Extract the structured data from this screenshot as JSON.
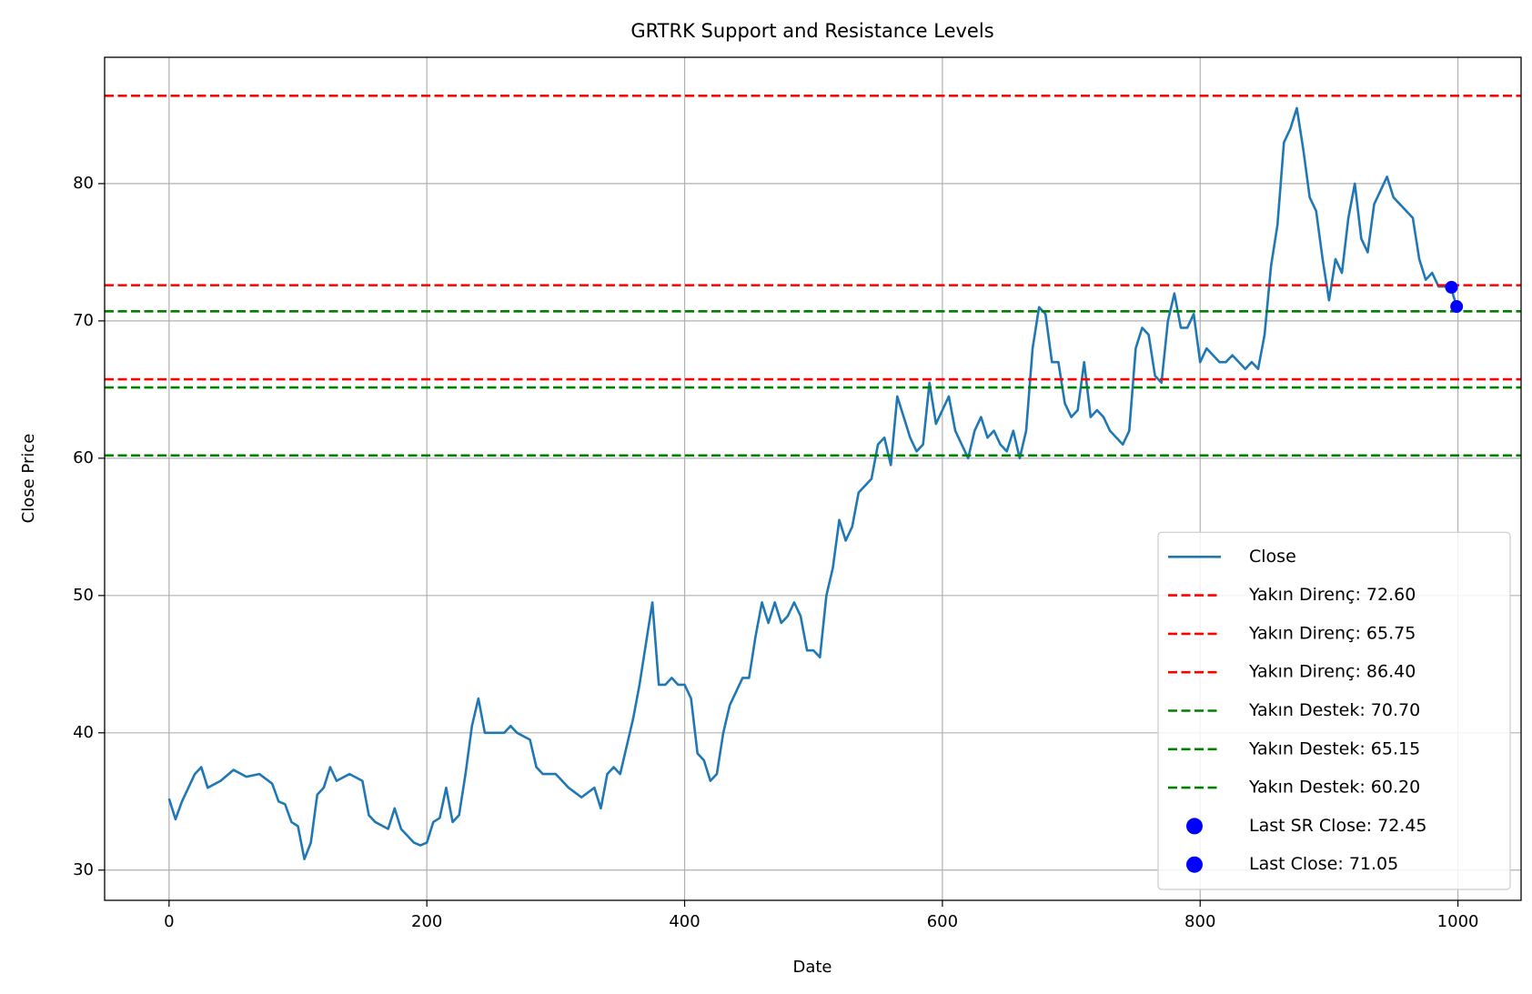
{
  "chart_data": {
    "type": "line",
    "title": "GRTRK Support and Resistance Levels",
    "x_label": "Date",
    "y_label": "Close Price",
    "xlim": [
      -50,
      1049
    ],
    "ylim": [
      27.8,
      89.2
    ],
    "xticks": [
      0,
      200,
      400,
      600,
      800,
      1000
    ],
    "yticks": [
      30,
      40,
      50,
      60,
      70,
      80
    ],
    "grid": true,
    "legend": "lower right",
    "series": [
      {
        "name": "Close",
        "color": "#1f77b4",
        "x": [
          0,
          5,
          10,
          15,
          20,
          25,
          30,
          40,
          50,
          60,
          70,
          80,
          85,
          90,
          95,
          100,
          105,
          110,
          115,
          120,
          125,
          130,
          140,
          150,
          155,
          160,
          170,
          175,
          180,
          190,
          195,
          200,
          205,
          210,
          215,
          220,
          225,
          230,
          235,
          240,
          245,
          250,
          260,
          265,
          270,
          280,
          285,
          290,
          300,
          310,
          320,
          330,
          335,
          340,
          345,
          350,
          355,
          360,
          365,
          370,
          375,
          380,
          385,
          390,
          395,
          400,
          405,
          410,
          415,
          420,
          425,
          430,
          435,
          440,
          445,
          450,
          455,
          460,
          465,
          470,
          475,
          480,
          485,
          490,
          495,
          500,
          505,
          510,
          515,
          520,
          525,
          530,
          535,
          540,
          545,
          550,
          555,
          560,
          565,
          570,
          575,
          580,
          585,
          590,
          595,
          600,
          605,
          610,
          615,
          620,
          625,
          630,
          635,
          640,
          645,
          650,
          655,
          660,
          665,
          670,
          675,
          680,
          685,
          690,
          695,
          700,
          705,
          710,
          715,
          720,
          725,
          730,
          735,
          740,
          745,
          750,
          755,
          760,
          765,
          770,
          775,
          780,
          785,
          790,
          795,
          800,
          805,
          810,
          815,
          820,
          825,
          830,
          835,
          840,
          845,
          850,
          855,
          860,
          865,
          870,
          875,
          880,
          885,
          890,
          895,
          900,
          905,
          910,
          915,
          920,
          925,
          930,
          935,
          940,
          945,
          950,
          955,
          960,
          965,
          970,
          975,
          980,
          985,
          990,
          995,
          999
        ],
        "values": [
          35.2,
          33.7,
          35,
          36,
          37,
          37.5,
          36,
          36.5,
          37.3,
          36.8,
          37,
          36.3,
          35,
          34.8,
          33.5,
          33.2,
          30.8,
          32,
          35.5,
          36,
          37.5,
          36.5,
          37,
          36.5,
          34,
          33.5,
          33,
          34.5,
          33,
          32,
          31.8,
          32,
          33.5,
          33.8,
          36,
          33.5,
          34,
          37,
          40.5,
          42.5,
          40,
          40,
          40,
          40.5,
          40,
          39.5,
          37.5,
          37,
          37,
          36,
          35.3,
          36,
          34.5,
          37,
          37.5,
          37,
          39,
          41,
          43.5,
          46.5,
          49.5,
          43.5,
          43.5,
          44,
          43.5,
          43.5,
          42.5,
          38.5,
          38,
          36.5,
          37,
          40,
          42,
          43,
          44,
          44,
          47,
          49.5,
          48,
          49.5,
          48,
          48.5,
          49.5,
          48.5,
          46,
          46,
          45.5,
          50,
          52,
          55.5,
          54,
          55,
          57.5,
          58,
          58.5,
          61,
          61.5,
          59.5,
          64.5,
          63,
          61.5,
          60.5,
          61,
          65.5,
          62.5,
          63.5,
          64.5,
          62,
          61,
          60,
          62,
          63,
          61.5,
          62,
          61,
          60.5,
          62,
          60,
          62,
          68,
          71,
          70.5,
          67,
          67,
          64,
          63,
          63.5,
          67,
          63,
          63.5,
          63,
          62,
          61.5,
          61,
          62,
          68,
          69.5,
          69,
          66,
          65.5,
          70,
          72,
          69.5,
          69.5,
          70.5,
          67,
          68,
          67.5,
          67,
          67,
          67.5,
          67,
          66.5,
          67,
          66.5,
          69,
          74,
          77,
          83,
          84,
          85.5,
          82.5,
          79,
          78,
          74.5,
          71.5,
          74.5,
          73.5,
          77.5,
          80,
          76,
          75,
          78.5,
          79.5,
          80.5,
          79,
          78.5,
          78,
          77.5,
          74.5,
          73,
          73.5,
          72.5,
          72.5,
          72.3,
          71.05
        ]
      }
    ],
    "hlines": [
      {
        "name": "Yakın Direnç: 72.60",
        "color": "#ff0000",
        "value": 72.6
      },
      {
        "name": "Yakın Direnç: 65.75",
        "color": "#ff0000",
        "value": 65.75
      },
      {
        "name": "Yakın Direnç: 86.40",
        "color": "#ff0000",
        "value": 86.4
      },
      {
        "name": "Yakın Destek: 70.70",
        "color": "#008000",
        "value": 70.7
      },
      {
        "name": "Yakın Destek: 65.15",
        "color": "#008000",
        "value": 65.15
      },
      {
        "name": "Yakın Destek: 60.20",
        "color": "#008000",
        "value": 60.2
      }
    ],
    "points": [
      {
        "name": "Last SR Close: 72.45",
        "color": "#0000ff",
        "x": 995,
        "value": 72.45
      },
      {
        "name": "Last Close: 71.05",
        "color": "#0000ff",
        "x": 999,
        "value": 71.05
      }
    ]
  }
}
